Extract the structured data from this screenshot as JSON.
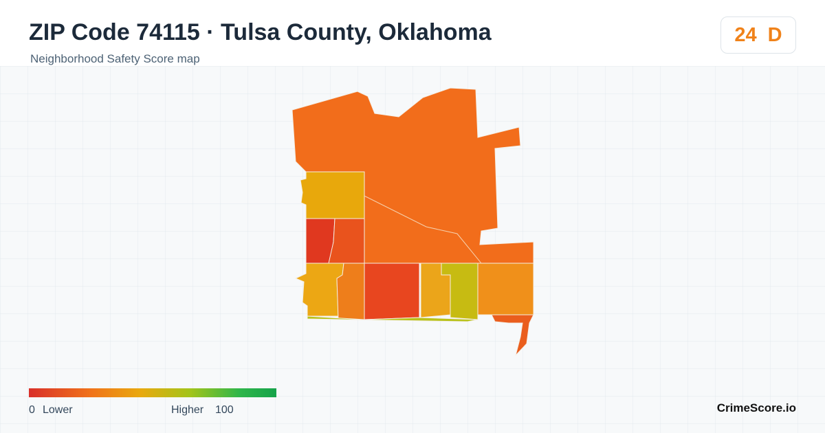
{
  "header": {
    "title": "ZIP Code 74115 · Tulsa County, Oklahoma",
    "subtitle": "Neighborhood Safety Score map"
  },
  "score": {
    "value": 24,
    "grade": "D"
  },
  "legend": {
    "min": 0,
    "min_label": "Lower",
    "max_label": "Higher",
    "max": 100
  },
  "brand": "CrimeScore.io"
}
